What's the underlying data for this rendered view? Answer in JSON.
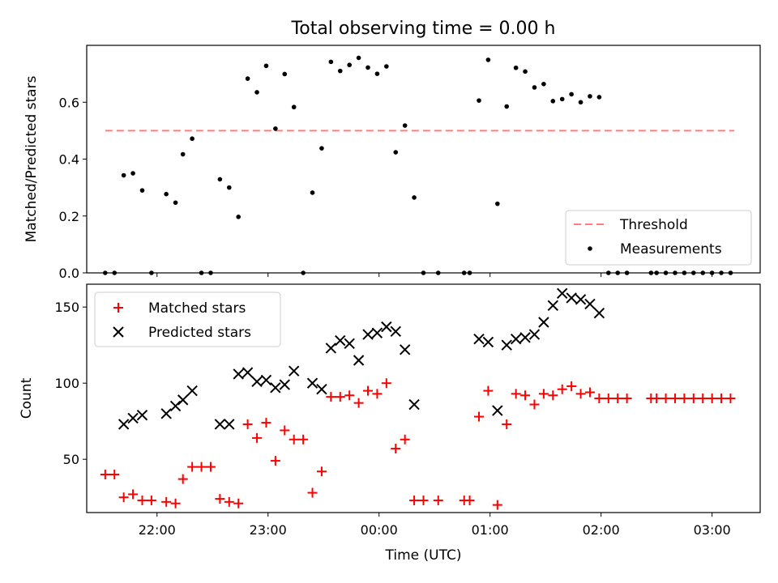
{
  "chart_data": [
    {
      "type": "scatter",
      "title": "Total observing time = 0.00 h",
      "xlabel": "",
      "ylabel": "Matched/Predicted stars",
      "ylim": [
        0,
        0.8
      ],
      "yticks": [
        0.0,
        0.2,
        0.4,
        0.6
      ],
      "ytick_labels": [
        "0.0",
        "0.2",
        "0.4",
        "0.6"
      ],
      "legend_position": "bottom-right",
      "threshold": {
        "label": "Threshold",
        "value": 0.5,
        "x_start": "21:32",
        "x_end": "03:12",
        "color": "#ff7f7f",
        "style": "dashed"
      },
      "series": [
        {
          "name": "Measurements",
          "marker": "dot",
          "color": "#000000",
          "points": [
            [
              "21:32",
              0.0
            ],
            [
              "21:37",
              0.0
            ],
            [
              "21:42",
              0.343
            ],
            [
              "21:47",
              0.35
            ],
            [
              "21:52",
              0.29
            ],
            [
              "21:57",
              0.0
            ],
            [
              "22:05",
              0.277
            ],
            [
              "22:10",
              0.247
            ],
            [
              "22:14",
              0.417
            ],
            [
              "22:19",
              0.472
            ],
            [
              "22:24",
              0.0
            ],
            [
              "22:29",
              0.0
            ],
            [
              "22:34",
              0.329
            ],
            [
              "22:39",
              0.3
            ],
            [
              "22:44",
              0.197
            ],
            [
              "22:49",
              0.683
            ],
            [
              "22:54",
              0.635
            ],
            [
              "22:59",
              0.728
            ],
            [
              "23:04",
              0.507
            ],
            [
              "23:09",
              0.699
            ],
            [
              "23:14",
              0.583
            ],
            [
              "23:19",
              0.0
            ],
            [
              "23:24",
              0.282
            ],
            [
              "23:29",
              0.438
            ],
            [
              "23:34",
              0.742
            ],
            [
              "23:39",
              0.71
            ],
            [
              "23:44",
              0.731
            ],
            [
              "23:49",
              0.756
            ],
            [
              "23:54",
              0.722
            ],
            [
              "23:59",
              0.7
            ],
            [
              "00:04",
              0.726
            ],
            [
              "00:09",
              0.424
            ],
            [
              "00:14",
              0.518
            ],
            [
              "00:19",
              0.265
            ],
            [
              "00:24",
              0.0
            ],
            [
              "00:32",
              0.0
            ],
            [
              "00:46",
              0.0
            ],
            [
              "00:49",
              0.0
            ],
            [
              "00:54",
              0.606
            ],
            [
              "00:59",
              0.749
            ],
            [
              "01:04",
              0.243
            ],
            [
              "01:09",
              0.585
            ],
            [
              "01:14",
              0.721
            ],
            [
              "01:19",
              0.708
            ],
            [
              "01:24",
              0.652
            ],
            [
              "01:29",
              0.664
            ],
            [
              "01:34",
              0.604
            ],
            [
              "01:39",
              0.611
            ],
            [
              "01:44",
              0.628
            ],
            [
              "01:49",
              0.6
            ],
            [
              "01:54",
              0.621
            ],
            [
              "01:59",
              0.618
            ],
            [
              "02:04",
              0.0
            ],
            [
              "02:09",
              0.0
            ],
            [
              "02:14",
              0.0
            ],
            [
              "02:27",
              0.0
            ],
            [
              "02:30",
              0.0
            ],
            [
              "02:35",
              0.0
            ],
            [
              "02:40",
              0.0
            ],
            [
              "02:45",
              0.0
            ],
            [
              "02:50",
              0.0
            ],
            [
              "02:55",
              0.0
            ],
            [
              "03:00",
              0.0
            ],
            [
              "03:05",
              0.0
            ],
            [
              "03:10",
              0.0
            ]
          ]
        }
      ]
    },
    {
      "type": "scatter",
      "title": "",
      "xlabel": "Time (UTC)",
      "ylabel": "Count",
      "xlim": [
        "21:22",
        "03:26"
      ],
      "xticks": [
        "22:00",
        "23:00",
        "00:00",
        "01:00",
        "02:00",
        "03:00"
      ],
      "ylim": [
        15,
        165
      ],
      "yticks": [
        50,
        100,
        150
      ],
      "legend_position": "top-left",
      "series": [
        {
          "name": "Matched stars",
          "marker": "plus",
          "color": "#ff0000",
          "points": [
            [
              "21:32",
              40
            ],
            [
              "21:37",
              40
            ],
            [
              "21:42",
              25
            ],
            [
              "21:47",
              27
            ],
            [
              "21:52",
              23
            ],
            [
              "21:57",
              23
            ],
            [
              "22:05",
              22
            ],
            [
              "22:10",
              21
            ],
            [
              "22:14",
              37
            ],
            [
              "22:19",
              45
            ],
            [
              "22:24",
              45
            ],
            [
              "22:29",
              45
            ],
            [
              "22:34",
              24
            ],
            [
              "22:39",
              22
            ],
            [
              "22:44",
              21
            ],
            [
              "22:49",
              73
            ],
            [
              "22:54",
              64
            ],
            [
              "22:59",
              74
            ],
            [
              "23:04",
              49
            ],
            [
              "23:09",
              69
            ],
            [
              "23:14",
              63
            ],
            [
              "23:19",
              63
            ],
            [
              "23:24",
              28
            ],
            [
              "23:29",
              42
            ],
            [
              "23:34",
              91
            ],
            [
              "23:39",
              91
            ],
            [
              "23:44",
              92
            ],
            [
              "23:49",
              87
            ],
            [
              "23:54",
              95
            ],
            [
              "23:59",
              93
            ],
            [
              "00:04",
              100
            ],
            [
              "00:09",
              57
            ],
            [
              "00:14",
              63
            ],
            [
              "00:19",
              23
            ],
            [
              "00:24",
              23
            ],
            [
              "00:32",
              23
            ],
            [
              "00:46",
              23
            ],
            [
              "00:49",
              23
            ],
            [
              "00:54",
              78
            ],
            [
              "00:59",
              95
            ],
            [
              "01:04",
              20
            ],
            [
              "01:09",
              73
            ],
            [
              "01:14",
              93
            ],
            [
              "01:19",
              92
            ],
            [
              "01:24",
              86
            ],
            [
              "01:29",
              93
            ],
            [
              "01:34",
              92
            ],
            [
              "01:39",
              96
            ],
            [
              "01:44",
              98
            ],
            [
              "01:49",
              93
            ],
            [
              "01:54",
              94
            ],
            [
              "01:59",
              90
            ],
            [
              "02:04",
              90
            ],
            [
              "02:09",
              90
            ],
            [
              "02:14",
              90
            ],
            [
              "02:27",
              90
            ],
            [
              "02:30",
              90
            ],
            [
              "02:35",
              90
            ],
            [
              "02:40",
              90
            ],
            [
              "02:45",
              90
            ],
            [
              "02:50",
              90
            ],
            [
              "02:55",
              90
            ],
            [
              "03:00",
              90
            ],
            [
              "03:05",
              90
            ],
            [
              "03:10",
              90
            ]
          ]
        },
        {
          "name": "Predicted stars",
          "marker": "x",
          "color": "#000000",
          "points": [
            [
              "21:42",
              73
            ],
            [
              "21:47",
              77
            ],
            [
              "21:52",
              79
            ],
            [
              "22:05",
              80
            ],
            [
              "22:10",
              85
            ],
            [
              "22:14",
              89
            ],
            [
              "22:19",
              95
            ],
            [
              "22:34",
              73
            ],
            [
              "22:39",
              73
            ],
            [
              "22:44",
              106
            ],
            [
              "22:49",
              107
            ],
            [
              "22:54",
              101
            ],
            [
              "22:59",
              102
            ],
            [
              "23:04",
              97
            ],
            [
              "23:09",
              99
            ],
            [
              "23:14",
              108
            ],
            [
              "23:24",
              100
            ],
            [
              "23:29",
              96
            ],
            [
              "23:34",
              123
            ],
            [
              "23:39",
              128
            ],
            [
              "23:44",
              126
            ],
            [
              "23:49",
              115
            ],
            [
              "23:54",
              132
            ],
            [
              "23:59",
              133
            ],
            [
              "00:04",
              137
            ],
            [
              "00:09",
              134
            ],
            [
              "00:14",
              122
            ],
            [
              "00:19",
              86
            ],
            [
              "00:54",
              129
            ],
            [
              "00:59",
              127
            ],
            [
              "01:04",
              82
            ],
            [
              "01:09",
              125
            ],
            [
              "01:14",
              129
            ],
            [
              "01:19",
              130
            ],
            [
              "01:24",
              132
            ],
            [
              "01:29",
              140
            ],
            [
              "01:34",
              151
            ],
            [
              "01:39",
              159
            ],
            [
              "01:44",
              156
            ],
            [
              "01:49",
              155
            ],
            [
              "01:54",
              152
            ],
            [
              "01:59",
              146
            ]
          ]
        }
      ]
    }
  ]
}
